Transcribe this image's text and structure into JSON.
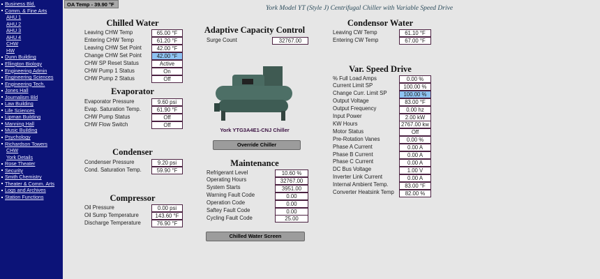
{
  "sidebar": {
    "items": [
      {
        "label": "Business Bld.",
        "sub": false
      },
      {
        "label": "Comm. & Fine Arts",
        "sub": false
      },
      {
        "label": "AHU 1",
        "sub": true
      },
      {
        "label": "AHU 2",
        "sub": true
      },
      {
        "label": "AHU 3",
        "sub": true
      },
      {
        "label": "AHU 4",
        "sub": true
      },
      {
        "label": "CHW",
        "sub": true
      },
      {
        "label": "HW",
        "sub": true
      },
      {
        "label": "Dunn Building",
        "sub": false
      },
      {
        "label": "Ellington Biology",
        "sub": false
      },
      {
        "label": "Engineering  Admin",
        "sub": false
      },
      {
        "label": "Engineering Sciences",
        "sub": false
      },
      {
        "label": "Engineering Tech.",
        "sub": false
      },
      {
        "label": "Jones Hall",
        "sub": false
      },
      {
        "label": "Journalism Bld",
        "sub": false
      },
      {
        "label": "Law Building",
        "sub": false
      },
      {
        "label": "Life Sciences",
        "sub": false
      },
      {
        "label": "Lipman Building",
        "sub": false
      },
      {
        "label": "Manning Hall",
        "sub": false
      },
      {
        "label": "Music Building",
        "sub": false
      },
      {
        "label": "Psychology",
        "sub": false
      },
      {
        "label": "Richardson Towers",
        "sub": false
      },
      {
        "label": "CHW",
        "sub": true
      },
      {
        "label": "York Details",
        "sub": true
      },
      {
        "label": "Rose Theater",
        "sub": false
      },
      {
        "label": "Security",
        "sub": false
      },
      {
        "label": "Smith Chemistry",
        "sub": false
      },
      {
        "label": "Theater & Comm. Arts",
        "sub": false
      },
      {
        "label": "Logs and Archives",
        "sub": false
      },
      {
        "label": "Station Functions",
        "sub": false
      }
    ]
  },
  "oa_temp": "OA Temp - 39.90 °F",
  "header": "York Model YT (Style J) Centrifugal Chiller with Variable Speed Drive",
  "sections": [
    {
      "title": "Chilled Water",
      "rows": [
        [
          "Leaving CHW Temp",
          "65.00 °F"
        ],
        [
          "Entering CHW Temp",
          "61.20 °F"
        ],
        [
          "Leaving CHW Set Point",
          "42.00 °F"
        ],
        [
          "Change CHW Set Point",
          "42.00 °F",
          true
        ],
        [
          "CHW SP Reset Status",
          "Active"
        ],
        [
          "CHW Pump 1 Status",
          "On"
        ],
        [
          "CHW Pump 2 Status",
          "Off"
        ]
      ]
    },
    {
      "title": "Evaporator",
      "rows": [
        [
          "Evaporator Pressure",
          "9.60 psi"
        ],
        [
          "Evap. Saturation Temp.",
          "61.90 °F"
        ],
        [
          "CHW Pump Status",
          "Off"
        ],
        [
          "CHW Flow Switch",
          "Off"
        ]
      ]
    },
    {
      "title": "Condenser",
      "rows": [
        [
          "Condenser Pressure",
          "9.20 psi"
        ],
        [
          "Cond. Saturation Temp.",
          "59.90 °F"
        ]
      ]
    },
    {
      "title": "Compressor",
      "rows": [
        [
          "Oil Pressure",
          "0.00 psi"
        ],
        [
          "Oil Sump Temperature",
          "143.60 °F"
        ],
        [
          "Discharge Temperature",
          "76.90 °F"
        ]
      ]
    },
    {
      "title": "Adaptive Capacity Control",
      "rows": [
        [
          "Surge Count",
          "32767.00"
        ]
      ]
    },
    {
      "title": "Maintenance",
      "rows": [
        [
          "Refrigerant Level",
          "10.60 %"
        ],
        [
          "Operating Hours",
          "32767.00"
        ],
        [
          "System Starts",
          "3951.00"
        ],
        [
          "Warning Fault Code",
          "0.00"
        ],
        [
          "Operation Code",
          "0.00"
        ],
        [
          "Saftey Fault Code",
          "0.00"
        ],
        [
          "Cycling Fault Code",
          "25.00"
        ]
      ]
    },
    {
      "title": "Condensor Water",
      "rows": [
        [
          "Leaving CW Temp",
          "61.10 °F"
        ],
        [
          "Entering CW Temp",
          "67.00 °F"
        ]
      ]
    },
    {
      "title": "Var. Speed Drive",
      "rows": [
        [
          "% Full Load Amps",
          "0.00 %"
        ],
        [
          "Current Limit SP",
          "100.00 %"
        ],
        [
          "Change Curr. Limit SP",
          "100.00 %",
          true
        ],
        [
          "Output Voltage",
          "83.00 °F"
        ],
        [
          "Output Frequency",
          "0.00 hz"
        ],
        [
          "Input Power",
          "2.00 kW"
        ],
        [
          "KW Hours",
          "2767.00 kw"
        ],
        [
          "Motor Status",
          "Off"
        ],
        [
          "Pre-Rotation Vanes",
          "0.00 %"
        ],
        [
          "Phase A Current",
          "0.00 A"
        ],
        [
          "Phase B Current",
          "0.00 A"
        ],
        [
          "Phase C Current",
          "0.00 A"
        ],
        [
          "DC Bus Voltage",
          "1.00 V"
        ],
        [
          "Inverter Link Current",
          "0.00 A"
        ],
        [
          "Internal Ambient Temp.",
          "83.00 °F"
        ],
        [
          "Converter Heatsink Temp",
          "82.00 %"
        ]
      ]
    }
  ],
  "chiller_caption": "York YTG3A4E1-CNJ Chiller",
  "buttons": {
    "override": "Override Chiller",
    "chw_screen": "Chilled Water Screen"
  }
}
